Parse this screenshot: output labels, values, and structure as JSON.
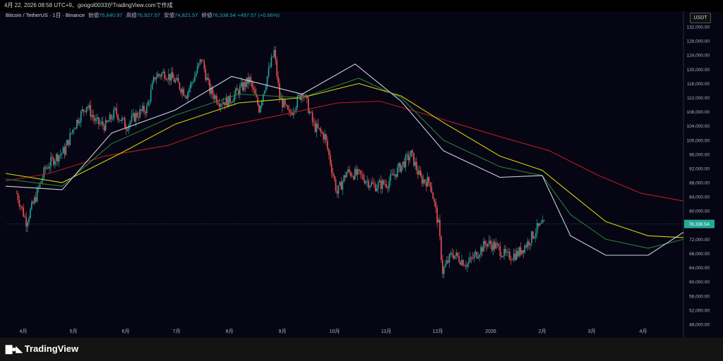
{
  "header": {
    "caption": "4月 22, 2026 08:58 UTC+9、googol0033がTradingView.comで作成"
  },
  "legend": {
    "symbol": "Bitcoin / TetherUS · 1日 · Binance",
    "open_label": "始値",
    "open": "75,840.97",
    "high_label": "高値",
    "high": "76,927.57",
    "low_label": "安値",
    "low": "74,821.57",
    "close_label": "終値",
    "close": "76,338.54",
    "change": "+497.57 (+0.66%)"
  },
  "currency_button": "USDT",
  "brand": {
    "name": "TradingView"
  },
  "icons": {
    "logo": "tradingview-logo-icon"
  },
  "colors": {
    "up": "#26a69a",
    "down": "#ef5350",
    "ma_red": "#b71c1c",
    "ma_yellow": "#d4d400",
    "ma_green": "#2e7d32",
    "ma_white": "#d0d0e0",
    "price_tag": "#26a69a"
  },
  "chart_data": {
    "type": "candlestick",
    "ylim": [
      46000,
      134000
    ],
    "y_ticks": [
      "132,000.00",
      "128,000.00",
      "124,000.00",
      "120,000.00",
      "116,000.00",
      "112,000.00",
      "108,000.00",
      "104,000.00",
      "100,000.00",
      "96,000.00",
      "92,000.00",
      "88,000.00",
      "84,000.00",
      "80,000.00",
      "76,000.00",
      "72,000.00",
      "68,000.00",
      "64,000.00",
      "60,000.00",
      "56,000.00",
      "52,000.00",
      "48,000.00"
    ],
    "x_ticks": [
      "4月",
      "5月",
      "6月",
      "7月",
      "8月",
      "9月",
      "10月",
      "11月",
      "12月",
      "2026",
      "2月",
      "3月",
      "4月"
    ],
    "last_price_label": "76,338.54",
    "last_price": 76338.54,
    "close_path": [
      [
        "2025-04-01",
        85000
      ],
      [
        "2025-04-08",
        77000
      ],
      [
        "2025-04-15",
        84000
      ],
      [
        "2025-04-22",
        92000
      ],
      [
        "2025-04-29",
        95000
      ],
      [
        "2025-05-06",
        97000
      ],
      [
        "2025-05-13",
        104000
      ],
      [
        "2025-05-22",
        110000
      ],
      [
        "2025-05-29",
        105000
      ],
      [
        "2025-06-05",
        104000
      ],
      [
        "2025-06-12",
        108000
      ],
      [
        "2025-06-20",
        104000
      ],
      [
        "2025-06-27",
        107000
      ],
      [
        "2025-07-05",
        109000
      ],
      [
        "2025-07-11",
        118000
      ],
      [
        "2025-07-18",
        119000
      ],
      [
        "2025-07-25",
        117000
      ],
      [
        "2025-08-03",
        113000
      ],
      [
        "2025-08-10",
        119000
      ],
      [
        "2025-08-14",
        123000
      ],
      [
        "2025-08-20",
        114000
      ],
      [
        "2025-08-27",
        111000
      ],
      [
        "2025-09-03",
        111000
      ],
      [
        "2025-09-10",
        114000
      ],
      [
        "2025-09-18",
        117000
      ],
      [
        "2025-09-25",
        109000
      ],
      [
        "2025-10-01",
        118000
      ],
      [
        "2025-10-06",
        125000
      ],
      [
        "2025-10-10",
        112000
      ],
      [
        "2025-10-17",
        107000
      ],
      [
        "2025-10-27",
        114000
      ],
      [
        "2025-11-04",
        104000
      ],
      [
        "2025-11-12",
        101000
      ],
      [
        "2025-11-21",
        85000
      ],
      [
        "2025-11-28",
        91000
      ],
      [
        "2025-12-08",
        90000
      ],
      [
        "2025-12-18",
        87000
      ],
      [
        "2025-12-28",
        88000
      ],
      [
        "2026-01-05",
        92000
      ],
      [
        "2026-01-14",
        96000
      ],
      [
        "2026-01-21",
        89000
      ],
      [
        "2026-01-28",
        88000
      ],
      [
        "2026-02-03",
        76000
      ],
      [
        "2026-02-06",
        63000
      ],
      [
        "2026-02-13",
        68000
      ],
      [
        "2026-02-24",
        65000
      ],
      [
        "2026-03-03",
        68000
      ],
      [
        "2026-03-10",
        71000
      ],
      [
        "2026-03-17",
        70000
      ],
      [
        "2026-03-25",
        67000
      ],
      [
        "2026-04-02",
        68000
      ],
      [
        "2026-04-09",
        71000
      ],
      [
        "2026-04-16",
        75000
      ],
      [
        "2026-04-22",
        76338.54
      ]
    ],
    "series": [
      {
        "name": "",
        "color": "#b71c1c",
        "values": [
          [
            0,
            88500
          ],
          [
            60,
            90500
          ],
          [
            140,
            95500
          ],
          [
            230,
            98500
          ],
          [
            300,
            103500
          ],
          [
            400,
            107500
          ],
          [
            470,
            110500
          ],
          [
            530,
            111000
          ],
          [
            600,
            107000
          ],
          [
            700,
            101000
          ],
          [
            770,
            97000
          ],
          [
            840,
            90000
          ],
          [
            900,
            85000
          ],
          [
            960,
            82800
          ]
        ]
      },
      {
        "name": "",
        "color": "#d4d400",
        "values": [
          [
            0,
            90600
          ],
          [
            80,
            88000
          ],
          [
            160,
            96000
          ],
          [
            240,
            104500
          ],
          [
            330,
            110500
          ],
          [
            420,
            112000
          ],
          [
            500,
            116000
          ],
          [
            560,
            112500
          ],
          [
            620,
            105000
          ],
          [
            700,
            95500
          ],
          [
            760,
            91500
          ],
          [
            800,
            85000
          ],
          [
            850,
            77000
          ],
          [
            910,
            73000
          ],
          [
            960,
            72500
          ]
        ]
      },
      {
        "name": "",
        "color": "#2e7d32",
        "values": [
          [
            0,
            89000
          ],
          [
            80,
            87000
          ],
          [
            150,
            99000
          ],
          [
            240,
            107000
          ],
          [
            330,
            113000
          ],
          [
            420,
            112000
          ],
          [
            500,
            117500
          ],
          [
            560,
            112000
          ],
          [
            620,
            100000
          ],
          [
            700,
            92500
          ],
          [
            760,
            90000
          ],
          [
            800,
            79000
          ],
          [
            850,
            72000
          ],
          [
            910,
            69500
          ],
          [
            960,
            72000
          ]
        ]
      },
      {
        "name": "",
        "color": "#d0d0e0",
        "values": [
          [
            0,
            87000
          ],
          [
            80,
            86000
          ],
          [
            150,
            102000
          ],
          [
            240,
            108500
          ],
          [
            320,
            118000
          ],
          [
            420,
            113000
          ],
          [
            495,
            121500
          ],
          [
            560,
            111000
          ],
          [
            620,
            97000
          ],
          [
            700,
            89500
          ],
          [
            760,
            90000
          ],
          [
            800,
            73000
          ],
          [
            850,
            67500
          ],
          [
            910,
            67500
          ],
          [
            960,
            74000
          ]
        ]
      }
    ]
  }
}
